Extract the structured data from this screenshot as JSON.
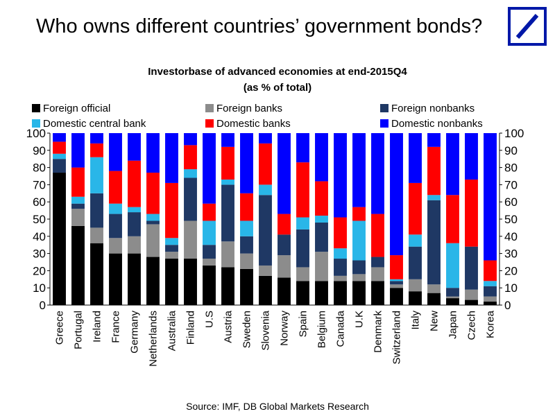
{
  "headline": "Who owns different countries’ government bonds?",
  "logo": {
    "name": "deutsche-bank-logo",
    "color": "#0018a8"
  },
  "source": "Source: IMF, DB Global Markets Research",
  "chart_data": {
    "type": "bar",
    "stacked": true,
    "title": "Investorbase of advanced economies at end-2015Q4",
    "subtitle": "(as % of total)",
    "xlabel": "",
    "ylabel": "",
    "ylim": [
      0,
      100
    ],
    "yticks": [
      0,
      10,
      20,
      30,
      40,
      50,
      60,
      70,
      80,
      90,
      100
    ],
    "grid": false,
    "legend_position": "top",
    "categories": [
      "Greece",
      "Portugal",
      "Ireland",
      "France",
      "Germany",
      "Netherlands",
      "Australia",
      "Finland",
      "U.S",
      "Austria",
      "Sweden",
      "Slovenia",
      "Norway",
      "Spain",
      "Belgium",
      "Canada",
      "U.K",
      "Denmark",
      "Switzerland",
      "Italy",
      "New",
      "Japan",
      "Czech",
      "Korea"
    ],
    "series": [
      {
        "name": "Foreign official",
        "color": "#000000",
        "values": [
          77,
          46,
          36,
          30,
          30,
          28,
          27,
          27,
          23,
          22,
          21,
          17,
          16,
          14,
          14,
          14,
          14,
          14,
          10,
          8,
          7,
          4,
          3,
          2
        ]
      },
      {
        "name": "Foreign banks",
        "color": "#8c8c8c",
        "values": [
          0,
          10,
          9,
          9,
          10,
          19,
          4,
          22,
          4,
          15,
          9,
          6,
          13,
          8,
          17,
          3,
          4,
          8,
          2,
          7,
          5,
          1,
          6,
          3
        ]
      },
      {
        "name": "Foreign nonbanks",
        "color": "#1f3864",
        "values": [
          8,
          3,
          20,
          14,
          14,
          2,
          4,
          25,
          8,
          33,
          10,
          41,
          12,
          22,
          17,
          10,
          8,
          6,
          2,
          19,
          49,
          5,
          25,
          6
        ]
      },
      {
        "name": "Domestic central bank",
        "color": "#29b6e8",
        "values": [
          3,
          4,
          21,
          6,
          3,
          4,
          4,
          5,
          14,
          3,
          9,
          6,
          0,
          7,
          4,
          6,
          23,
          0,
          1,
          7,
          3,
          26,
          0,
          3
        ]
      },
      {
        "name": "Domestic banks",
        "color": "#ff0000",
        "values": [
          7,
          17,
          8,
          19,
          27,
          24,
          32,
          14,
          10,
          19,
          16,
          24,
          12,
          32,
          20,
          18,
          8,
          25,
          14,
          30,
          28,
          28,
          39,
          12
        ]
      },
      {
        "name": "Domestic nonbanks",
        "color": "#0000ff",
        "values": [
          5,
          20,
          6,
          22,
          16,
          23,
          29,
          7,
          41,
          8,
          35,
          6,
          47,
          17,
          28,
          49,
          43,
          47,
          71,
          29,
          8,
          36,
          27,
          74
        ]
      }
    ]
  }
}
